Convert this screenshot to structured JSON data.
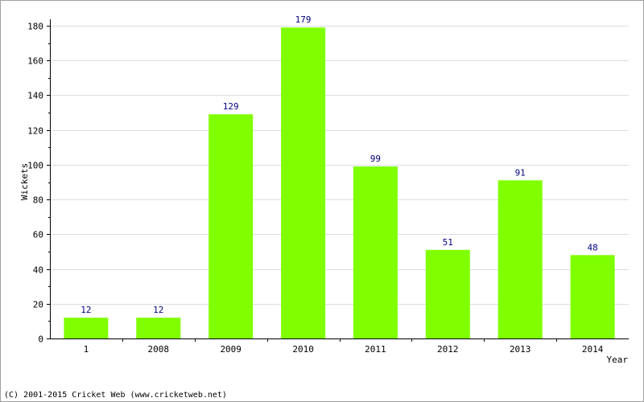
{
  "chart_data": {
    "type": "bar",
    "categories": [
      "1",
      "2008",
      "2009",
      "2010",
      "2011",
      "2012",
      "2013",
      "2014"
    ],
    "values": [
      12,
      12,
      129,
      179,
      99,
      51,
      91,
      48
    ],
    "title": "",
    "xlabel": "Year",
    "ylabel": "Wickets",
    "ylim": [
      0,
      180
    ],
    "yticks": [
      0,
      20,
      40,
      60,
      80,
      100,
      120,
      140,
      160,
      180
    ],
    "grid": true,
    "legend": "none",
    "show_value_labels": true
  },
  "colors": {
    "bar": "#80ff00",
    "value_label": "#000080",
    "grid": "#dddddd",
    "axis": "#000000"
  },
  "footer": {
    "copyright": "(C) 2001-2015 Cricket Web (www.cricketweb.net)"
  }
}
